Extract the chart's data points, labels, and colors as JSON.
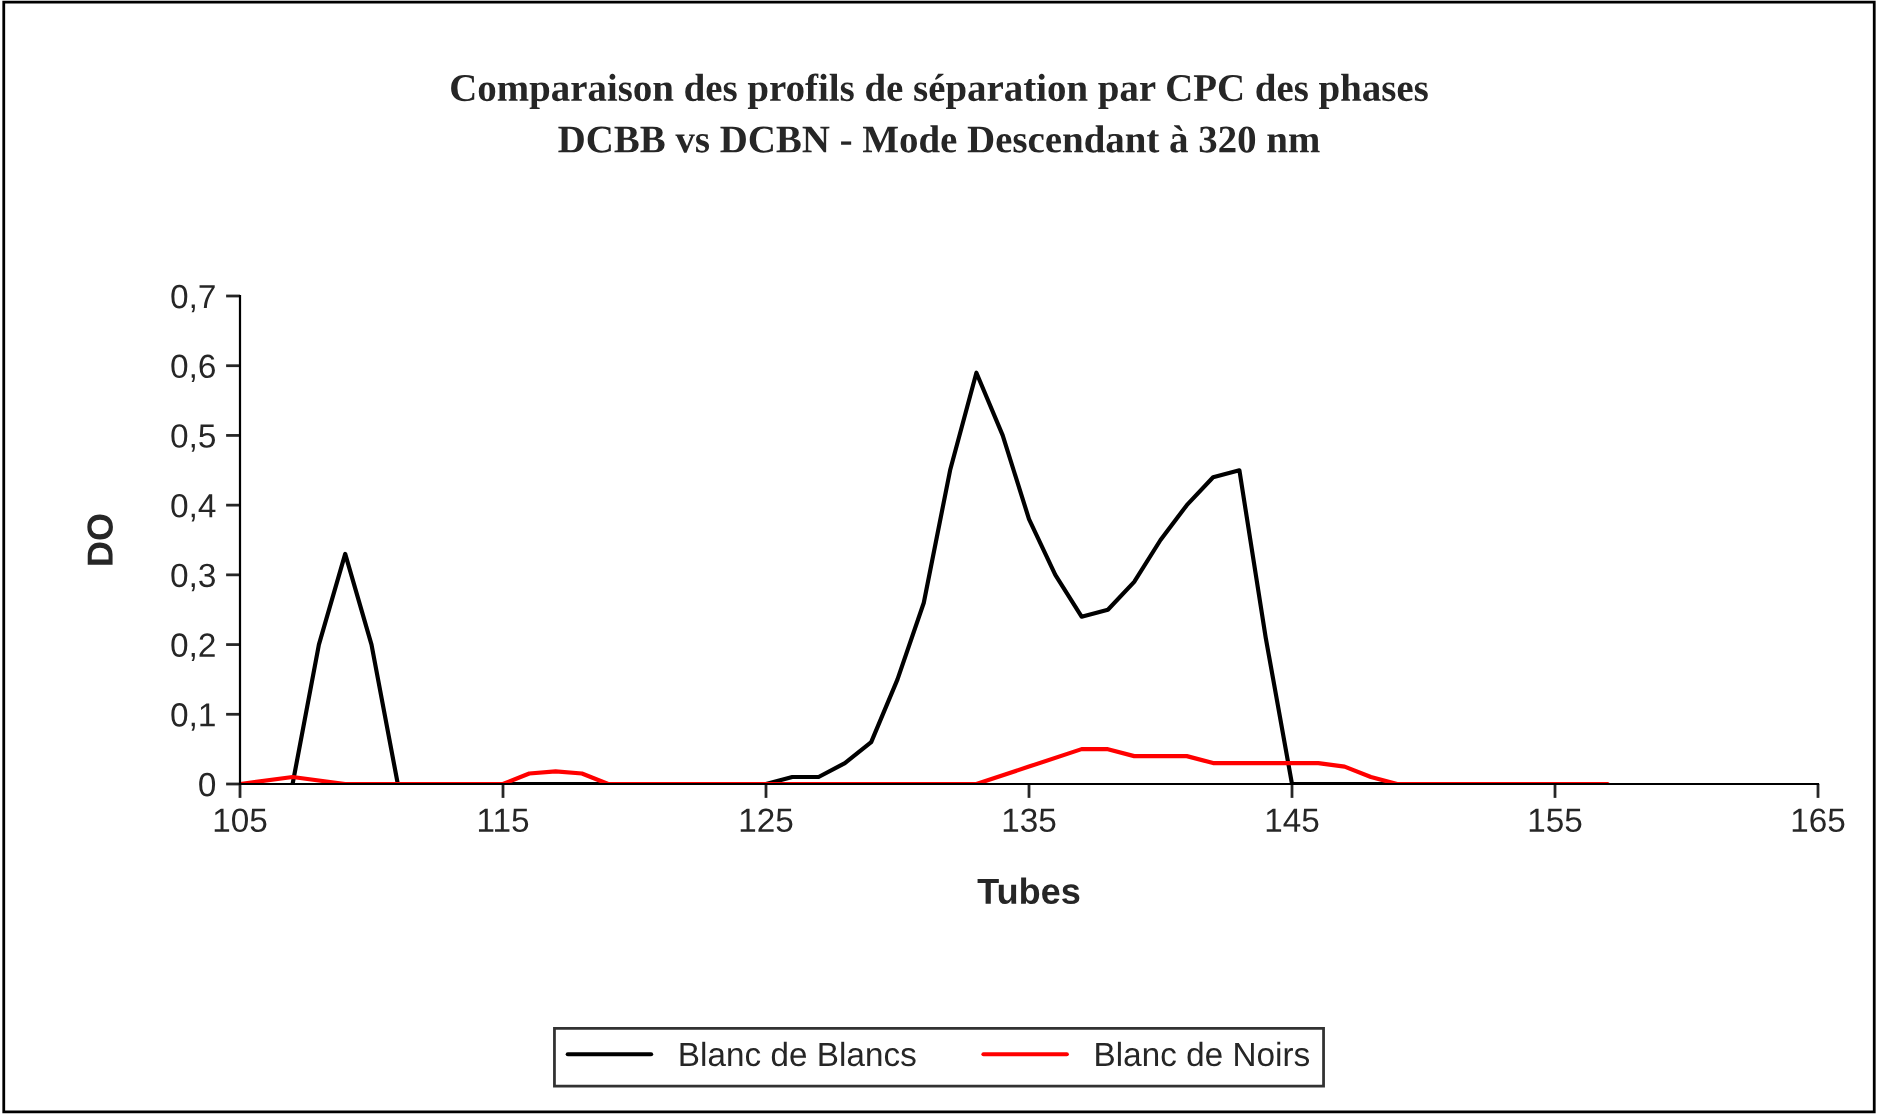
{
  "chart_data": {
    "type": "line",
    "title": "Comparaison des profils de séparation par CPC des phases\nDCBB vs DCBN - Mode Descendant à 320 nm",
    "xlabel": "Tubes",
    "ylabel": "DO",
    "xlim": [
      105,
      165
    ],
    "xticks": [
      105,
      115,
      125,
      135,
      145,
      155,
      165
    ],
    "ylim": [
      0,
      0.7
    ],
    "yticks": [
      {
        "value": 0,
        "label": "0"
      },
      {
        "value": 0.1,
        "label": "0,1"
      },
      {
        "value": 0.2,
        "label": "0,2"
      },
      {
        "value": 0.3,
        "label": "0,3"
      },
      {
        "value": 0.4,
        "label": "0,4"
      },
      {
        "value": 0.5,
        "label": "0,5"
      },
      {
        "value": 0.6,
        "label": "0,6"
      },
      {
        "value": 0.7,
        "label": "0,7"
      }
    ],
    "grid": false,
    "legend": "bottom",
    "marker": "none",
    "line_style": "solid",
    "series": [
      {
        "name": "Blanc de Blancs",
        "color": "#000000",
        "x": [
          107,
          108,
          109,
          110,
          111,
          113,
          115,
          117,
          119,
          121,
          123,
          125,
          126,
          127,
          128,
          129,
          130,
          131,
          132,
          133,
          134,
          135,
          136,
          137,
          138,
          139,
          140,
          141,
          142,
          143,
          144,
          145,
          147,
          149
        ],
        "values": [
          0,
          0.2,
          0.33,
          0.2,
          0,
          0,
          0,
          0,
          0,
          0,
          0,
          0,
          0.01,
          0.01,
          0.03,
          0.06,
          0.15,
          0.26,
          0.45,
          0.59,
          0.5,
          0.38,
          0.3,
          0.24,
          0.25,
          0.29,
          0.35,
          0.4,
          0.44,
          0.45,
          0.21,
          0,
          0,
          0
        ]
      },
      {
        "name": "Blanc de Noirs",
        "color": "#ff0000",
        "x": [
          105,
          107,
          109,
          111,
          113,
          115,
          116,
          117,
          118,
          119,
          121,
          123,
          125,
          127,
          129,
          131,
          133,
          135,
          137,
          138,
          139,
          140,
          141,
          142,
          143,
          144,
          145,
          146,
          147,
          148,
          149,
          151,
          153,
          155,
          157
        ],
        "values": [
          0,
          0.01,
          0,
          0,
          0,
          0,
          0.015,
          0.018,
          0.015,
          0,
          0,
          0,
          0,
          0,
          0,
          0,
          0,
          0.025,
          0.05,
          0.05,
          0.04,
          0.04,
          0.04,
          0.03,
          0.03,
          0.03,
          0.03,
          0.03,
          0.025,
          0.01,
          0,
          0,
          0,
          0,
          0
        ]
      }
    ]
  }
}
